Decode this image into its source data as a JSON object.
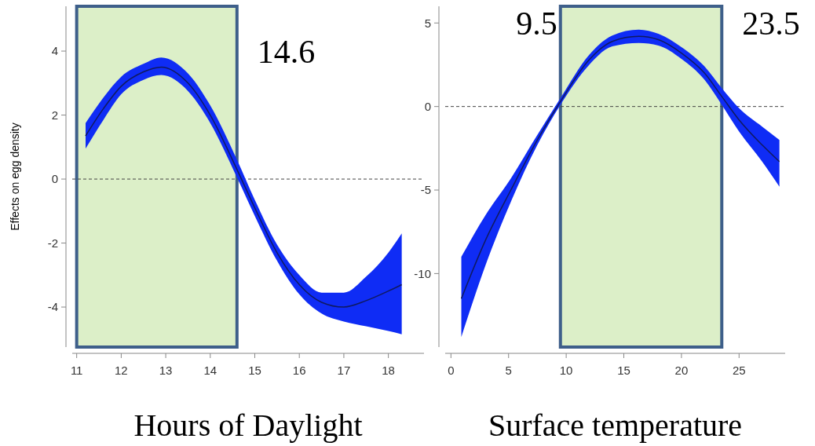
{
  "chart_data": [
    {
      "type": "line",
      "xlabel": "Hours of Daylight",
      "ylabel": "Effects on egg density",
      "x": [
        11.2,
        11.6,
        12,
        12.5,
        12.9,
        13.5,
        14,
        14.6,
        15,
        15.5,
        16,
        16.5,
        17,
        17.5,
        18,
        18.3
      ],
      "series": [
        {
          "color": "#101a60",
          "values": [
            1.35,
            2.2,
            2.9,
            3.35,
            3.5,
            3.0,
            2.0,
            0.3,
            -0.9,
            -2.3,
            -3.3,
            -3.85,
            -4.0,
            -3.8,
            -3.5,
            -3.3
          ],
          "lower": [
            0.95,
            1.85,
            2.65,
            3.1,
            3.25,
            2.75,
            1.75,
            0.05,
            -1.15,
            -2.55,
            -3.6,
            -4.2,
            -4.45,
            -4.6,
            -4.75,
            -4.85
          ],
          "upper": [
            1.75,
            2.55,
            3.2,
            3.6,
            3.8,
            3.3,
            2.3,
            0.6,
            -0.65,
            -2.05,
            -3.0,
            -3.55,
            -3.55,
            -3.05,
            -2.3,
            -1.7
          ]
        }
      ],
      "xlim": [
        10.9,
        18.8
      ],
      "xticks": [
        11,
        12,
        13,
        14,
        15,
        16,
        17,
        18
      ],
      "ylim": [
        -5.25,
        5.4
      ],
      "yticks": [
        -4,
        -2,
        0,
        2,
        4
      ],
      "ref_lines": [
        {
          "axis": "y",
          "value": 0,
          "line_style": "dashed",
          "color": "#444444"
        }
      ],
      "bands": [
        {
          "axis": "x",
          "from": 11,
          "to": 14.6,
          "color": "#dcefc8"
        }
      ],
      "annotations": [
        {
          "text": "14.6",
          "x": 14.6,
          "y": 4.0
        }
      ]
    },
    {
      "type": "line",
      "xlabel": "Surface temperature",
      "x": [
        0.9,
        3,
        5.2,
        7.5,
        9.5,
        12,
        14,
        16.3,
        18,
        20,
        22,
        23.5,
        25,
        27,
        28.5
      ],
      "series": [
        {
          "color": "#101a60",
          "values": [
            -11.5,
            -8.0,
            -5.0,
            -2.0,
            0.3,
            2.8,
            3.9,
            4.2,
            4.0,
            3.2,
            2.0,
            0.6,
            -0.8,
            -2.3,
            -3.3
          ],
          "lower": [
            -13.8,
            -9.5,
            -5.7,
            -2.3,
            0.1,
            2.5,
            3.6,
            3.8,
            3.65,
            2.85,
            1.6,
            0.1,
            -1.5,
            -3.3,
            -4.8
          ],
          "upper": [
            -9.0,
            -6.5,
            -4.3,
            -1.7,
            0.5,
            3.1,
            4.25,
            4.6,
            4.35,
            3.55,
            2.4,
            1.1,
            -0.1,
            -1.2,
            -2.0
          ]
        }
      ],
      "xlim": [
        -0.5,
        29
      ],
      "xticks": [
        0,
        5,
        10,
        15,
        20,
        25
      ],
      "ylim": [
        -14.4,
        6
      ],
      "yticks": [
        -10,
        -5,
        0,
        5
      ],
      "ref_lines": [
        {
          "axis": "y",
          "value": 0,
          "line_style": "dashed",
          "color": "#444444"
        }
      ],
      "bands": [
        {
          "axis": "x",
          "from": 9.5,
          "to": 23.5,
          "color": "#dcefc8"
        }
      ],
      "annotations": [
        {
          "text": "9.5",
          "x": 9.5,
          "y": 5.0
        },
        {
          "text": "23.5",
          "x": 23.5,
          "y": 5.0
        }
      ]
    }
  ]
}
